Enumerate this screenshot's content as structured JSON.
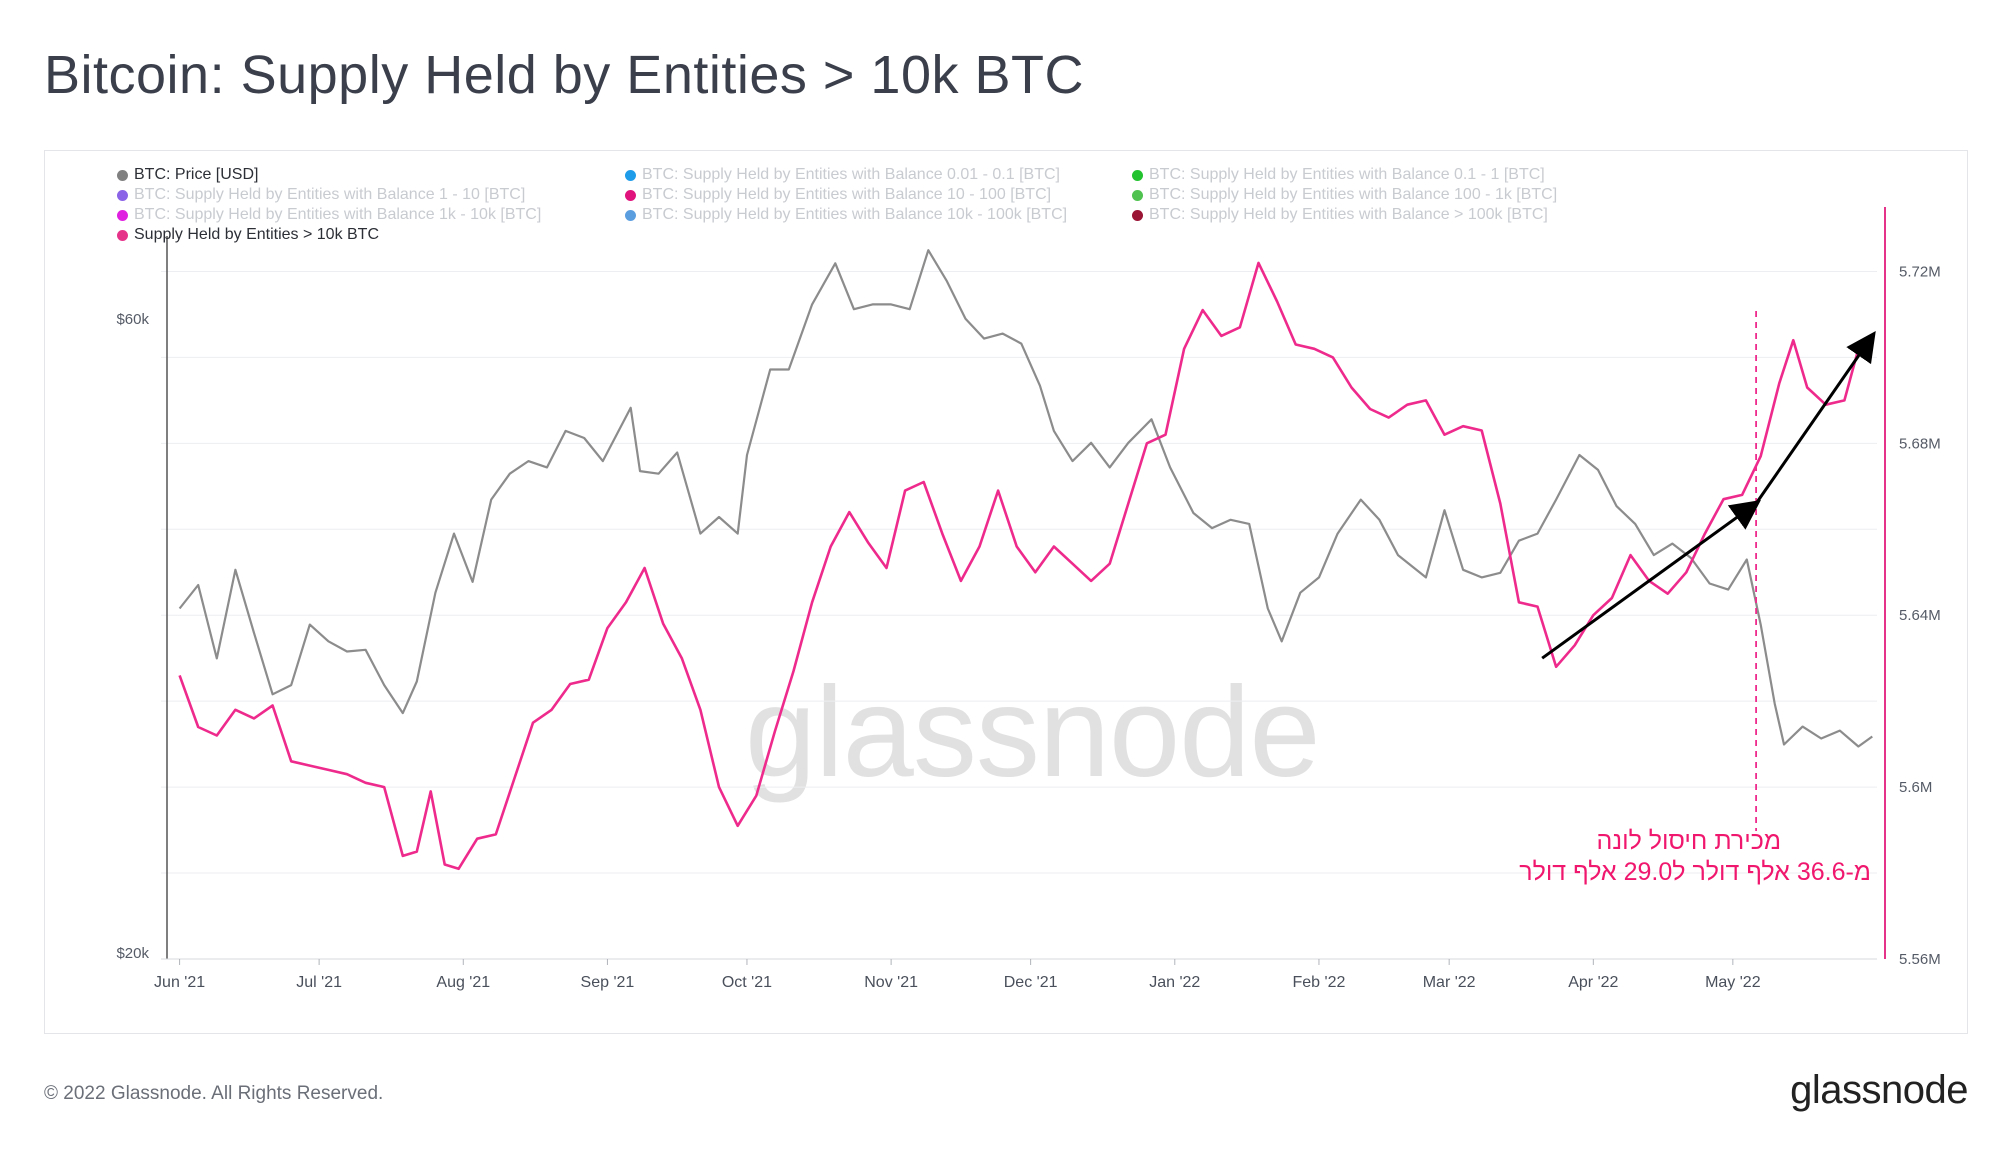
{
  "title": "Bitcoin: Supply Held by Entities > 10k BTC",
  "footer": {
    "copyright": "© 2022 Glassnode. All Rights Reserved.",
    "logo": "glassnode"
  },
  "watermark": "glassnode",
  "annotation": {
    "line1": "מכירת חיסול לונה",
    "line2": "מ-36.6 אלף דולר ל29.0 אלף דולר"
  },
  "legend": [
    {
      "label": "BTC: Price [USD]",
      "color": "#808080",
      "active": true
    },
    {
      "label": "BTC: Supply Held by Entities with Balance 0.01 - 0.1 [BTC]",
      "color": "#1e9be9",
      "active": false
    },
    {
      "label": "BTC: Supply Held by Entities with Balance 0.1 - 1 [BTC]",
      "color": "#22c22e",
      "active": false
    },
    {
      "label": "BTC: Supply Held by Entities with Balance 1 - 10 [BTC]",
      "color": "#8a63e6",
      "active": false
    },
    {
      "label": "BTC: Supply Held by Entities with Balance 10 - 100 [BTC]",
      "color": "#e0137d",
      "active": false
    },
    {
      "label": "BTC: Supply Held by Entities with Balance 100 - 1k [BTC]",
      "color": "#4fc24f",
      "active": false
    },
    {
      "label": "BTC: Supply Held by Entities with Balance 1k - 10k [BTC]",
      "color": "#e020e0",
      "active": false
    },
    {
      "label": "BTC: Supply Held by Entities with Balance 10k - 100k [BTC]",
      "color": "#5b9ee0",
      "active": false
    },
    {
      "label": "BTC: Supply Held by Entities with Balance > 100k [BTC]",
      "color": "#9a1434",
      "active": false
    },
    {
      "label": "Supply Held by Entities > 10k BTC",
      "color": "#e6338a",
      "active": true
    }
  ],
  "chart_data": {
    "type": "line",
    "x_ticks": [
      "Jun '21",
      "Jul '21",
      "Aug '21",
      "Sep '21",
      "Oct '21",
      "Nov '21",
      "Dec '21",
      "Jan '22",
      "Feb '22",
      "Mar '22",
      "Apr '22",
      "May '22"
    ],
    "y_left": {
      "label": "",
      "scale": "log",
      "ticks": [
        "$20k",
        "$60k"
      ],
      "tick_values": [
        20000,
        60000
      ],
      "range": [
        20000,
        70000
      ]
    },
    "y_right": {
      "label": "",
      "ticks": [
        "5.56M",
        "5.6M",
        "5.64M",
        "5.68M",
        "5.72M"
      ],
      "tick_values": [
        5.56,
        5.6,
        5.64,
        5.68,
        5.72
      ],
      "range": [
        5.56,
        5.735
      ]
    },
    "grid": true,
    "series": [
      {
        "name": "BTC: Price [USD]",
        "color": "#8c8c8c",
        "axis": "left",
        "points": [
          [
            "2021-06-01",
            36500
          ],
          [
            "2021-06-05",
            38000
          ],
          [
            "2021-06-09",
            33500
          ],
          [
            "2021-06-13",
            39000
          ],
          [
            "2021-06-17",
            35000
          ],
          [
            "2021-06-21",
            31500
          ],
          [
            "2021-06-25",
            32000
          ],
          [
            "2021-06-29",
            35500
          ],
          [
            "2021-07-03",
            34500
          ],
          [
            "2021-07-07",
            33900
          ],
          [
            "2021-07-11",
            34000
          ],
          [
            "2021-07-15",
            32000
          ],
          [
            "2021-07-19",
            30500
          ],
          [
            "2021-07-22",
            32200
          ],
          [
            "2021-07-26",
            37500
          ],
          [
            "2021-07-30",
            41500
          ],
          [
            "2021-08-03",
            38200
          ],
          [
            "2021-08-07",
            44000
          ],
          [
            "2021-08-11",
            46000
          ],
          [
            "2021-08-15",
            47000
          ],
          [
            "2021-08-19",
            46500
          ],
          [
            "2021-08-23",
            49500
          ],
          [
            "2021-08-27",
            48900
          ],
          [
            "2021-08-31",
            47000
          ],
          [
            "2021-09-06",
            51500
          ],
          [
            "2021-09-08",
            46200
          ],
          [
            "2021-09-12",
            46000
          ],
          [
            "2021-09-16",
            47700
          ],
          [
            "2021-09-21",
            41500
          ],
          [
            "2021-09-25",
            42700
          ],
          [
            "2021-09-29",
            41500
          ],
          [
            "2021-10-01",
            47500
          ],
          [
            "2021-10-06",
            55000
          ],
          [
            "2021-10-10",
            55000
          ],
          [
            "2021-10-15",
            61500
          ],
          [
            "2021-10-20",
            66000
          ],
          [
            "2021-10-24",
            61000
          ],
          [
            "2021-10-28",
            61500
          ],
          [
            "2021-11-01",
            61500
          ],
          [
            "2021-11-05",
            61000
          ],
          [
            "2021-11-09",
            67500
          ],
          [
            "2021-11-13",
            64000
          ],
          [
            "2021-11-17",
            60000
          ],
          [
            "2021-11-21",
            58000
          ],
          [
            "2021-11-25",
            58500
          ],
          [
            "2021-11-29",
            57500
          ],
          [
            "2021-12-03",
            53500
          ],
          [
            "2021-12-06",
            49500
          ],
          [
            "2021-12-10",
            47000
          ],
          [
            "2021-12-14",
            48500
          ],
          [
            "2021-12-18",
            46500
          ],
          [
            "2021-12-22",
            48500
          ],
          [
            "2021-12-27",
            50500
          ],
          [
            "2021-12-31",
            46500
          ],
          [
            "2022-01-05",
            43000
          ],
          [
            "2022-01-09",
            41900
          ],
          [
            "2022-01-13",
            42500
          ],
          [
            "2022-01-17",
            42200
          ],
          [
            "2022-01-21",
            36500
          ],
          [
            "2022-01-24",
            34500
          ],
          [
            "2022-01-28",
            37500
          ],
          [
            "2022-02-01",
            38500
          ],
          [
            "2022-02-05",
            41500
          ],
          [
            "2022-02-10",
            44000
          ],
          [
            "2022-02-14",
            42500
          ],
          [
            "2022-02-18",
            40000
          ],
          [
            "2022-02-24",
            38500
          ],
          [
            "2022-02-28",
            43200
          ],
          [
            "2022-03-04",
            39000
          ],
          [
            "2022-03-08",
            38500
          ],
          [
            "2022-03-12",
            38800
          ],
          [
            "2022-03-16",
            41000
          ],
          [
            "2022-03-20",
            41500
          ],
          [
            "2022-03-24",
            44000
          ],
          [
            "2022-03-29",
            47500
          ],
          [
            "2022-04-02",
            46300
          ],
          [
            "2022-04-06",
            43500
          ],
          [
            "2022-04-10",
            42200
          ],
          [
            "2022-04-14",
            40000
          ],
          [
            "2022-04-18",
            40800
          ],
          [
            "2022-04-22",
            39800
          ],
          [
            "2022-04-26",
            38100
          ],
          [
            "2022-04-30",
            37700
          ],
          [
            "2022-05-04",
            39700
          ],
          [
            "2022-05-07",
            35500
          ],
          [
            "2022-05-10",
            31000
          ],
          [
            "2022-05-12",
            28900
          ],
          [
            "2022-05-16",
            29800
          ],
          [
            "2022-05-20",
            29200
          ],
          [
            "2022-05-24",
            29600
          ],
          [
            "2022-05-28",
            28800
          ],
          [
            "2022-05-31",
            29300
          ]
        ]
      },
      {
        "name": "Supply Held by Entities > 10k BTC",
        "color": "#ee2a8c",
        "axis": "right",
        "points": [
          [
            "2021-06-01",
            5.626
          ],
          [
            "2021-06-05",
            5.614
          ],
          [
            "2021-06-09",
            5.612
          ],
          [
            "2021-06-13",
            5.618
          ],
          [
            "2021-06-17",
            5.616
          ],
          [
            "2021-06-21",
            5.619
          ],
          [
            "2021-06-25",
            5.606
          ],
          [
            "2021-06-29",
            5.605
          ],
          [
            "2021-07-03",
            5.604
          ],
          [
            "2021-07-07",
            5.603
          ],
          [
            "2021-07-11",
            5.601
          ],
          [
            "2021-07-15",
            5.6
          ],
          [
            "2021-07-19",
            5.584
          ],
          [
            "2021-07-22",
            5.585
          ],
          [
            "2021-07-25",
            5.599
          ],
          [
            "2021-07-28",
            5.582
          ],
          [
            "2021-07-31",
            5.581
          ],
          [
            "2021-08-04",
            5.588
          ],
          [
            "2021-08-08",
            5.589
          ],
          [
            "2021-08-12",
            5.602
          ],
          [
            "2021-08-16",
            5.615
          ],
          [
            "2021-08-20",
            5.618
          ],
          [
            "2021-08-24",
            5.624
          ],
          [
            "2021-08-28",
            5.625
          ],
          [
            "2021-09-01",
            5.637
          ],
          [
            "2021-09-05",
            5.643
          ],
          [
            "2021-09-09",
            5.651
          ],
          [
            "2021-09-13",
            5.638
          ],
          [
            "2021-09-17",
            5.63
          ],
          [
            "2021-09-21",
            5.618
          ],
          [
            "2021-09-25",
            5.6
          ],
          [
            "2021-09-29",
            5.591
          ],
          [
            "2021-10-03",
            5.598
          ],
          [
            "2021-10-07",
            5.613
          ],
          [
            "2021-10-11",
            5.627
          ],
          [
            "2021-10-15",
            5.643
          ],
          [
            "2021-10-19",
            5.656
          ],
          [
            "2021-10-23",
            5.664
          ],
          [
            "2021-10-27",
            5.657
          ],
          [
            "2021-10-31",
            5.651
          ],
          [
            "2021-11-04",
            5.669
          ],
          [
            "2021-11-08",
            5.671
          ],
          [
            "2021-11-12",
            5.659
          ],
          [
            "2021-11-16",
            5.648
          ],
          [
            "2021-11-20",
            5.656
          ],
          [
            "2021-11-24",
            5.669
          ],
          [
            "2021-11-28",
            5.656
          ],
          [
            "2021-12-02",
            5.65
          ],
          [
            "2021-12-06",
            5.656
          ],
          [
            "2021-12-10",
            5.652
          ],
          [
            "2021-12-14",
            5.648
          ],
          [
            "2021-12-18",
            5.652
          ],
          [
            "2021-12-22",
            5.666
          ],
          [
            "2021-12-26",
            5.68
          ],
          [
            "2021-12-30",
            5.682
          ],
          [
            "2022-01-03",
            5.702
          ],
          [
            "2022-01-07",
            5.711
          ],
          [
            "2022-01-11",
            5.705
          ],
          [
            "2022-01-15",
            5.707
          ],
          [
            "2022-01-19",
            5.722
          ],
          [
            "2022-01-23",
            5.713
          ],
          [
            "2022-01-27",
            5.703
          ],
          [
            "2022-01-31",
            5.702
          ],
          [
            "2022-02-04",
            5.7
          ],
          [
            "2022-02-08",
            5.693
          ],
          [
            "2022-02-12",
            5.688
          ],
          [
            "2022-02-16",
            5.686
          ],
          [
            "2022-02-20",
            5.689
          ],
          [
            "2022-02-24",
            5.69
          ],
          [
            "2022-02-28",
            5.682
          ],
          [
            "2022-03-04",
            5.684
          ],
          [
            "2022-03-08",
            5.683
          ],
          [
            "2022-03-12",
            5.666
          ],
          [
            "2022-03-16",
            5.643
          ],
          [
            "2022-03-20",
            5.642
          ],
          [
            "2022-03-24",
            5.628
          ],
          [
            "2022-03-28",
            5.633
          ],
          [
            "2022-04-01",
            5.64
          ],
          [
            "2022-04-05",
            5.644
          ],
          [
            "2022-04-09",
            5.654
          ],
          [
            "2022-04-13",
            5.648
          ],
          [
            "2022-04-17",
            5.645
          ],
          [
            "2022-04-21",
            5.65
          ],
          [
            "2022-04-25",
            5.659
          ],
          [
            "2022-04-29",
            5.667
          ],
          [
            "2022-05-03",
            5.668
          ],
          [
            "2022-05-07",
            5.677
          ],
          [
            "2022-05-11",
            5.694
          ],
          [
            "2022-05-14",
            5.704
          ],
          [
            "2022-05-17",
            5.693
          ],
          [
            "2022-05-21",
            5.689
          ],
          [
            "2022-05-25",
            5.69
          ],
          [
            "2022-05-28",
            5.702
          ],
          [
            "2022-05-31",
            5.702
          ]
        ]
      }
    ],
    "annotations": [
      {
        "type": "vertical-dashed-line",
        "x": "2022-05-06",
        "color": "#ee2a8c"
      },
      {
        "type": "arrow",
        "from": [
          "2022-03-21",
          5.63
        ],
        "to": [
          "2022-05-06",
          5.666
        ],
        "color": "#000000"
      },
      {
        "type": "arrow",
        "from": [
          "2022-05-06",
          5.666
        ],
        "to": [
          "2022-05-31",
          5.705
        ],
        "color": "#000000"
      }
    ]
  }
}
